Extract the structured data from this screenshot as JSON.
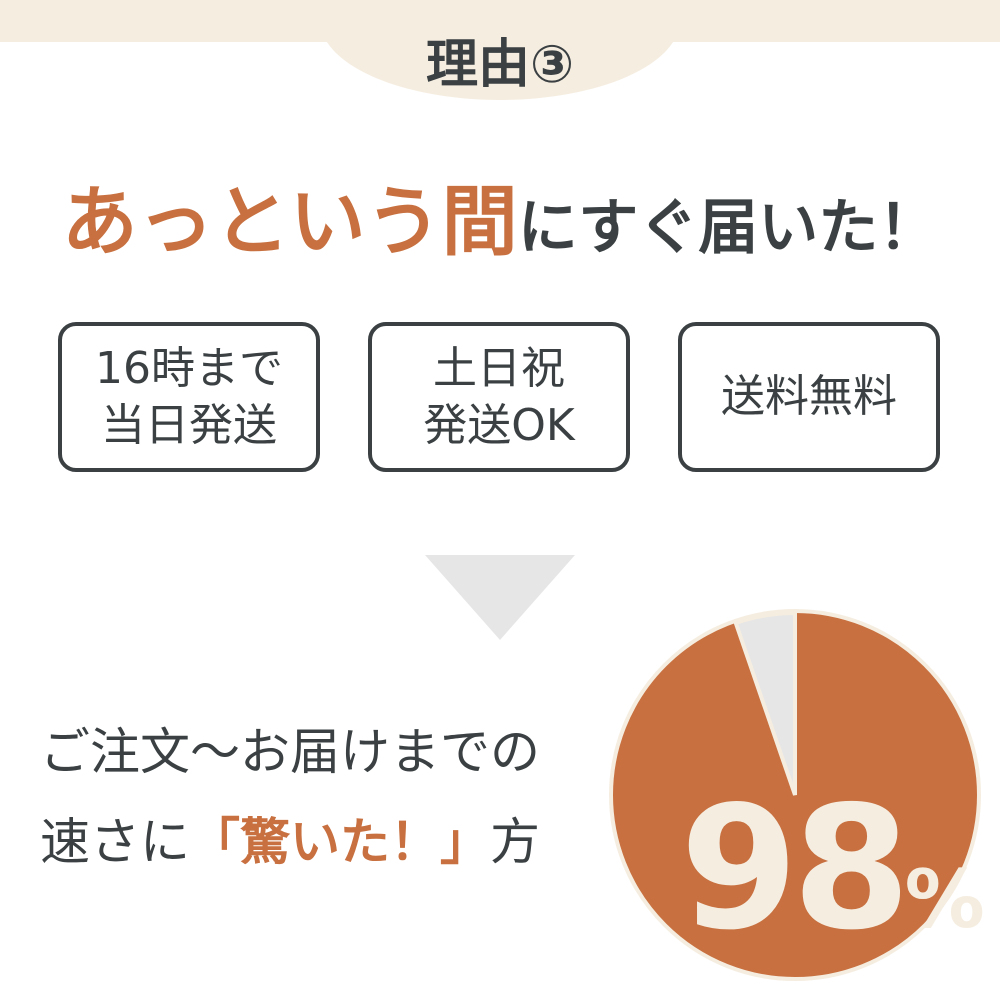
{
  "header": {
    "title": "理由③"
  },
  "headline": {
    "highlight": "あっという間",
    "rest": "にすぐ届いた！"
  },
  "features": [
    {
      "label": "16時まで\n当日発送"
    },
    {
      "label": "土日祝\n発送OK"
    },
    {
      "label": "送料無料"
    }
  ],
  "statement": {
    "line1": "ご注文～お届けまでの",
    "line2_pre": "速さに",
    "line2_highlight": "「驚いた！」",
    "line2_post": "方"
  },
  "stat": {
    "value": "98",
    "unit": "%",
    "percent": 98
  },
  "colors": {
    "accent": "#c8703f",
    "text": "#3b4143",
    "cream": "#f5ede0",
    "gray": "#e6e6e6"
  }
}
